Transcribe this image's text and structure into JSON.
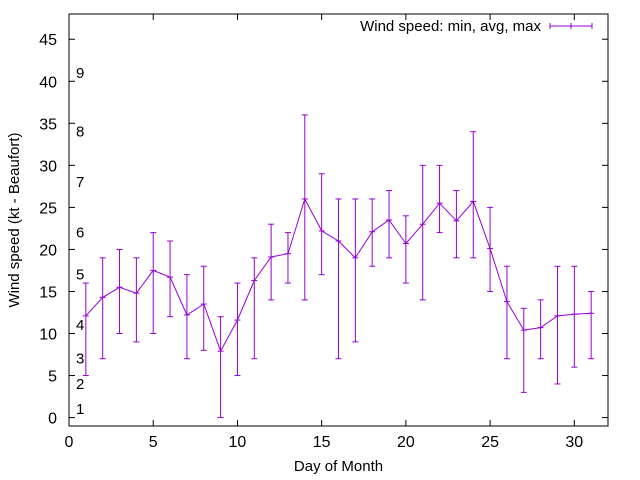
{
  "chart_data": {
    "type": "line",
    "title": "",
    "xlabel": "Day of Month",
    "ylabel": "Wind speed (kt - Beaufort)",
    "xlim": [
      0,
      32
    ],
    "ylim": [
      -1,
      48
    ],
    "xticks": [
      0,
      5,
      10,
      15,
      20,
      25,
      30
    ],
    "yticks": [
      0,
      5,
      10,
      15,
      20,
      25,
      30,
      35,
      40,
      45
    ],
    "beaufort_labels": [
      {
        "label": "1",
        "y": 1
      },
      {
        "label": "2",
        "y": 4
      },
      {
        "label": "3",
        "y": 7
      },
      {
        "label": "4",
        "y": 11
      },
      {
        "label": "5",
        "y": 17
      },
      {
        "label": "6",
        "y": 22
      },
      {
        "label": "7",
        "y": 28
      },
      {
        "label": "8",
        "y": 34
      },
      {
        "label": "9",
        "y": 41
      }
    ],
    "grid": false,
    "legend_position": "top-right",
    "color": "#9400d3",
    "series": [
      {
        "name": "Wind speed: min, avg, max",
        "x": [
          1,
          2,
          3,
          4,
          5,
          6,
          7,
          8,
          9,
          10,
          11,
          12,
          13,
          14,
          15,
          16,
          17,
          18,
          19,
          20,
          21,
          22,
          23,
          24,
          25,
          26,
          27,
          28,
          29,
          30,
          31
        ],
        "min": [
          5,
          7,
          10,
          9,
          10,
          12,
          7,
          8,
          0,
          5,
          7,
          14,
          16,
          14,
          17,
          7,
          9,
          18,
          19,
          16,
          14,
          22,
          19,
          19,
          15,
          7,
          3,
          7,
          4,
          6,
          7
        ],
        "avg": [
          12.1,
          14.3,
          15.5,
          14.8,
          17.5,
          16.7,
          12.2,
          13.5,
          7.9,
          11.6,
          16.3,
          19.1,
          19.5,
          26.0,
          22.2,
          21.0,
          19.0,
          22.1,
          23.5,
          20.7,
          23.0,
          25.5,
          23.4,
          25.7,
          20.1,
          13.8,
          10.4,
          10.7,
          12.1,
          12.3,
          12.4
        ],
        "max": [
          16,
          19,
          20,
          19,
          22,
          21,
          17,
          18,
          12,
          16,
          19,
          23,
          22,
          36,
          29,
          26,
          26,
          26,
          27,
          24,
          30,
          30,
          27,
          34,
          25,
          18,
          13,
          14,
          18,
          18,
          15
        ]
      }
    ]
  }
}
